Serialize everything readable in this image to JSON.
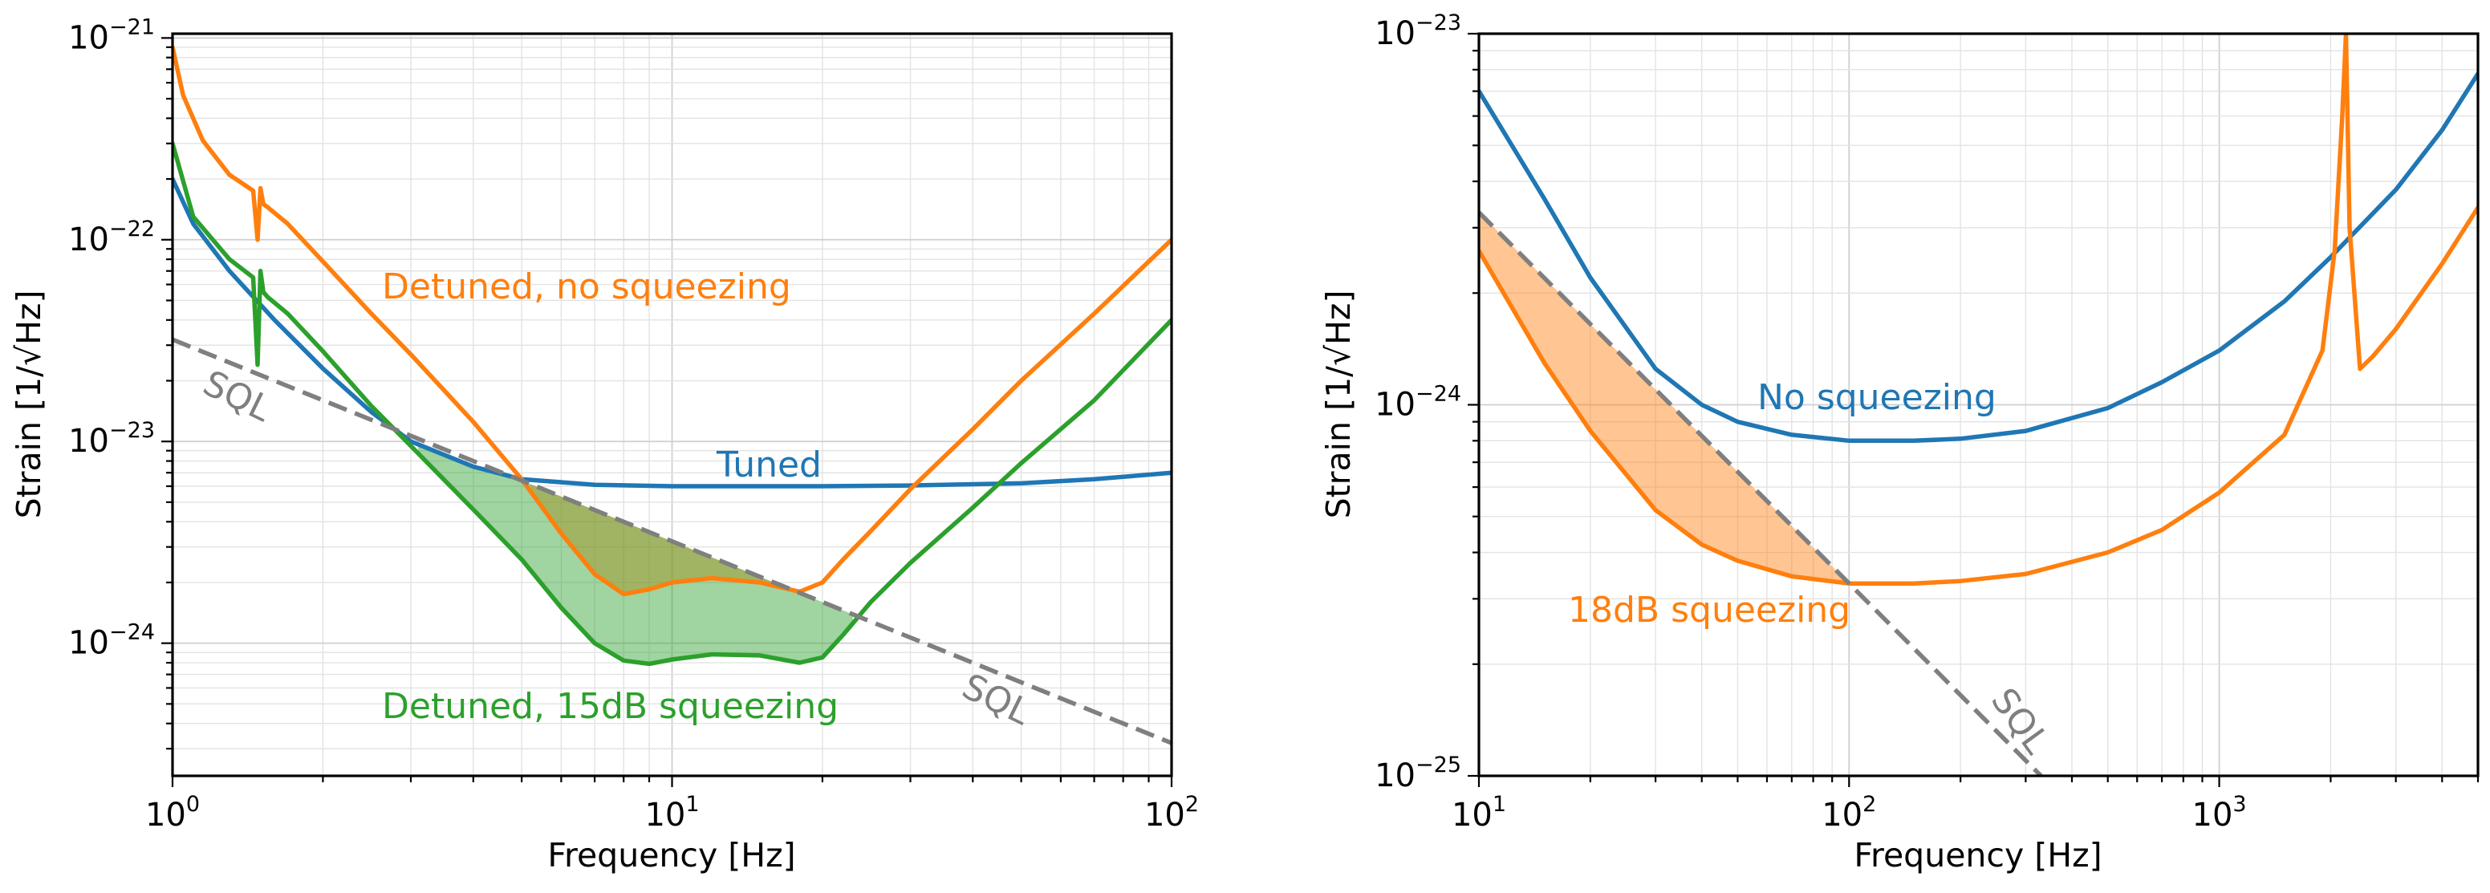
{
  "colors": {
    "blue": "#1f77b4",
    "orange": "#ff7f0e",
    "green": "#2ca02c",
    "gray": "#7f7f7f"
  },
  "chart_data": [
    {
      "type": "line",
      "xscale": "log",
      "yscale": "log",
      "xlim": [
        1,
        100
      ],
      "ylim": [
        2.2e-25,
        1.05e-21
      ],
      "xlabel": "Frequency [Hz]",
      "ylabel": "Strain [1/√Hz]",
      "x_ticks": [
        {
          "value": 1,
          "base": "10",
          "exp": "0"
        },
        {
          "value": 10,
          "base": "10",
          "exp": "1"
        },
        {
          "value": 100,
          "base": "10",
          "exp": "2"
        }
      ],
      "y_ticks": [
        {
          "value": 1e-24,
          "base": "10",
          "exp": "−24"
        },
        {
          "value": 1e-23,
          "base": "10",
          "exp": "−23"
        },
        {
          "value": 1e-22,
          "base": "10",
          "exp": "−22"
        },
        {
          "value": 1e-21,
          "base": "10",
          "exp": "−21"
        }
      ],
      "grid": true,
      "series": [
        {
          "name": "Tuned",
          "color": "blue",
          "x": [
            1,
            1.1,
            1.3,
            1.6,
            2,
            2.5,
            3,
            4,
            5,
            7,
            10,
            15,
            20,
            30,
            50,
            70,
            100
          ],
          "y": [
            2e-22,
            1.2e-22,
            7e-23,
            4e-23,
            2.3e-23,
            1.4e-23,
            1e-23,
            7.5e-24,
            6.5e-24,
            6.1e-24,
            6e-24,
            6e-24,
            6e-24,
            6.05e-24,
            6.2e-24,
            6.5e-24,
            7e-24
          ]
        },
        {
          "name": "Detuned, no squeezing",
          "color": "orange",
          "x": [
            1,
            1.05,
            1.15,
            1.3,
            1.45,
            1.48,
            1.5,
            1.52,
            1.55,
            1.7,
            2,
            2.5,
            3,
            4,
            5,
            6,
            7,
            8,
            9,
            10,
            12,
            15,
            18,
            20,
            22,
            25,
            30,
            40,
            50,
            70,
            100
          ],
          "y": [
            9e-22,
            5.2e-22,
            3.1e-22,
            2.1e-22,
            1.75e-22,
            1e-22,
            1.8e-22,
            1.5e-22,
            1.45e-22,
            1.2e-22,
            7.8e-23,
            4.3e-23,
            2.7e-23,
            1.25e-23,
            6.5e-24,
            3.5e-24,
            2.2e-24,
            1.75e-24,
            1.85e-24,
            2e-24,
            2.1e-24,
            2e-24,
            1.8e-24,
            2e-24,
            2.6e-24,
            3.6e-24,
            5.8e-24,
            1.15e-23,
            2e-23,
            4.3e-23,
            1e-22
          ]
        },
        {
          "name": "Detuned, 15dB squeezing",
          "color": "green",
          "x": [
            1,
            1.1,
            1.3,
            1.45,
            1.48,
            1.5,
            1.52,
            1.55,
            1.7,
            2,
            2.5,
            3,
            4,
            5,
            6,
            7,
            8,
            9,
            10,
            12,
            15,
            18,
            20,
            22,
            25,
            30,
            40,
            50,
            70,
            100
          ],
          "y": [
            3e-22,
            1.3e-22,
            8e-23,
            6.5e-23,
            2.4e-23,
            7e-23,
            5.5e-23,
            5.2e-23,
            4.3e-23,
            2.8e-23,
            1.5e-23,
            9.5e-24,
            4.6e-24,
            2.6e-24,
            1.5e-24,
            1e-24,
            8.2e-25,
            7.9e-25,
            8.3e-25,
            8.8e-25,
            8.7e-25,
            8e-25,
            8.5e-25,
            1.1e-24,
            1.6e-24,
            2.5e-24,
            4.7e-24,
            7.8e-24,
            1.6e-23,
            4e-23
          ]
        },
        {
          "name": "SQL",
          "color": "gray",
          "dashed": true,
          "x": [
            1,
            100
          ],
          "y": [
            3.2e-23,
            3.2e-25
          ]
        }
      ],
      "shaded": [
        {
          "between": [
            "Detuned, no squeezing",
            "SQL"
          ],
          "color": "orange",
          "x_range": [
            5.2,
            18
          ]
        },
        {
          "between": [
            "Detuned, 15dB squeezing",
            "Tuned/SQL"
          ],
          "color": "green",
          "x_range": [
            3.1,
            23
          ]
        }
      ],
      "annotations": [
        {
          "text": "Detuned, no squeezing",
          "color": "orange"
        },
        {
          "text": "Tuned",
          "color": "blue"
        },
        {
          "text": "Detuned, 15dB squeezing",
          "color": "green"
        },
        {
          "text": "SQL",
          "color": "gray"
        },
        {
          "text": "SQL",
          "color": "gray"
        }
      ]
    },
    {
      "type": "line",
      "xscale": "log",
      "yscale": "log",
      "xlim": [
        10,
        5000
      ],
      "ylim": [
        1e-25,
        1e-23
      ],
      "xlabel": "Frequency [Hz]",
      "ylabel": "Strain [1/√Hz]",
      "x_ticks": [
        {
          "value": 10,
          "base": "10",
          "exp": "1"
        },
        {
          "value": 100,
          "base": "10",
          "exp": "2"
        },
        {
          "value": 1000,
          "base": "10",
          "exp": "3"
        }
      ],
      "y_ticks": [
        {
          "value": 1e-25,
          "base": "10",
          "exp": "−25"
        },
        {
          "value": 1e-24,
          "base": "10",
          "exp": "−24"
        },
        {
          "value": 1e-23,
          "base": "10",
          "exp": "−23"
        }
      ],
      "grid": true,
      "series": [
        {
          "name": "No squeezing",
          "color": "blue",
          "x": [
            10,
            15,
            20,
            30,
            40,
            50,
            70,
            100,
            150,
            200,
            300,
            500,
            700,
            1000,
            1500,
            2000,
            3000,
            4000,
            5000
          ],
          "y": [
            7e-24,
            3.6e-24,
            2.2e-24,
            1.25e-24,
            1e-24,
            9e-25,
            8.3e-25,
            8e-25,
            8e-25,
            8.1e-25,
            8.5e-25,
            9.8e-25,
            1.15e-24,
            1.4e-24,
            1.9e-24,
            2.5e-24,
            3.8e-24,
            5.5e-24,
            7.8e-24
          ]
        },
        {
          "name": "18dB squeezing",
          "color": "orange",
          "x": [
            10,
            15,
            20,
            30,
            40,
            50,
            70,
            100,
            150,
            200,
            300,
            500,
            700,
            1000,
            1500,
            1900,
            2050,
            2150,
            2200,
            2250,
            2400,
            2600,
            3000,
            4000,
            5000
          ],
          "y": [
            2.6e-24,
            1.3e-24,
            8.5e-25,
            5.2e-25,
            4.2e-25,
            3.8e-25,
            3.45e-25,
            3.3e-25,
            3.3e-25,
            3.35e-25,
            3.5e-25,
            4e-25,
            4.6e-25,
            5.8e-25,
            8.3e-25,
            1.4e-24,
            2.6e-24,
            6e-24,
            1e-23,
            3e-24,
            1.25e-24,
            1.35e-24,
            1.6e-24,
            2.4e-24,
            3.4e-24
          ]
        },
        {
          "name": "SQL",
          "color": "gray",
          "dashed": true,
          "x": [
            10,
            330
          ],
          "y": [
            3.3e-24,
            1e-25
          ]
        }
      ],
      "shaded": [
        {
          "between": [
            "18dB squeezing",
            "SQL"
          ],
          "color": "orange",
          "x_range": [
            10,
            100
          ]
        }
      ],
      "annotations": [
        {
          "text": "No squeezing",
          "color": "blue"
        },
        {
          "text": "18dB squeezing",
          "color": "orange"
        },
        {
          "text": "SQL",
          "color": "gray"
        }
      ]
    }
  ]
}
